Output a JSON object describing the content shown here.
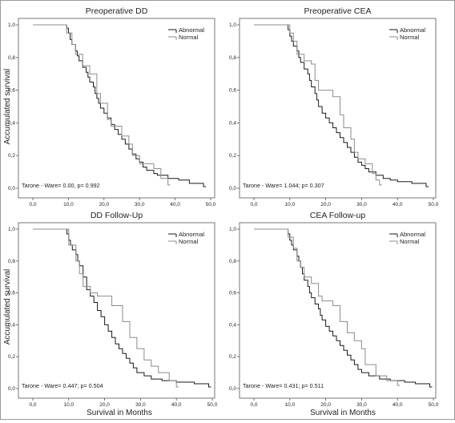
{
  "figure": {
    "y_axis_label": "Accumulated survival",
    "x_axis_label": "Survival in Months"
  },
  "chart_data": [
    {
      "type": "line",
      "subtype": "kaplan-meier step",
      "title": "Preoperative DD",
      "xlim": [
        0,
        50
      ],
      "ylim": [
        0,
        1
      ],
      "x_ticks": [
        "0,0",
        "10,0",
        "20,0",
        "30,0",
        "40,0",
        "50,0"
      ],
      "y_ticks": [
        "0,0",
        "0,2",
        "0,4",
        "0,6",
        "0,8",
        "1,0"
      ],
      "legend": [
        "Abnormal",
        "Normal"
      ],
      "legend_position": "top-right",
      "annotation": "Tarone - Ware= 0.00, p= 0.992",
      "series": [
        {
          "name": "Abnormal",
          "color": "#1a1a1a",
          "points": [
            [
              0,
              1.0
            ],
            [
              9.5,
              0.98
            ],
            [
              10,
              0.95
            ],
            [
              10.5,
              0.91
            ],
            [
              11,
              0.88
            ],
            [
              12,
              0.84
            ],
            [
              12.5,
              0.81
            ],
            [
              13,
              0.78
            ],
            [
              14,
              0.74
            ],
            [
              15,
              0.71
            ],
            [
              15.5,
              0.68
            ],
            [
              16,
              0.65
            ],
            [
              17,
              0.62
            ],
            [
              17.5,
              0.58
            ],
            [
              18,
              0.55
            ],
            [
              18.5,
              0.52
            ],
            [
              19,
              0.49
            ],
            [
              20,
              0.46
            ],
            [
              21,
              0.43
            ],
            [
              22,
              0.39
            ],
            [
              23,
              0.36
            ],
            [
              24,
              0.33
            ],
            [
              25,
              0.3
            ],
            [
              26,
              0.27
            ],
            [
              27,
              0.24
            ],
            [
              28,
              0.21
            ],
            [
              29,
              0.18
            ],
            [
              30,
              0.16
            ],
            [
              31,
              0.13
            ],
            [
              32,
              0.11
            ],
            [
              34,
              0.09
            ],
            [
              35,
              0.08
            ],
            [
              38,
              0.06
            ],
            [
              41,
              0.05
            ],
            [
              44,
              0.03
            ],
            [
              48,
              0.01
            ]
          ]
        },
        {
          "name": "Normal",
          "color": "#8c8c8c",
          "points": [
            [
              0,
              1.0
            ],
            [
              9.5,
              0.95
            ],
            [
              11,
              0.88
            ],
            [
              12,
              0.82
            ],
            [
              14,
              0.75
            ],
            [
              16,
              0.7
            ],
            [
              18,
              0.58
            ],
            [
              19,
              0.52
            ],
            [
              21,
              0.42
            ],
            [
              22,
              0.38
            ],
            [
              25,
              0.32
            ],
            [
              27,
              0.27
            ],
            [
              28,
              0.2
            ],
            [
              30,
              0.15
            ],
            [
              34,
              0.12
            ],
            [
              36,
              0.06
            ],
            [
              38,
              0.02
            ]
          ]
        }
      ]
    },
    {
      "type": "line",
      "subtype": "kaplan-meier step",
      "title": "Preoperative CEA",
      "xlim": [
        0,
        50
      ],
      "ylim": [
        0,
        1
      ],
      "x_ticks": [
        "0,0",
        "10,0",
        "20,0",
        "30,0",
        "40,0",
        "50,0"
      ],
      "y_ticks": [
        "0,0",
        "0,2",
        "0,4",
        "0,6",
        "0,8",
        "1,0"
      ],
      "legend": [
        "Abnormal",
        "Normal"
      ],
      "legend_position": "top-right",
      "annotation": "Tarone - Ware= 1.044; p= 0.307",
      "series": [
        {
          "name": "Abnormal",
          "color": "#1a1a1a",
          "points": [
            [
              0,
              1.0
            ],
            [
              9.5,
              0.97
            ],
            [
              10,
              0.93
            ],
            [
              10.5,
              0.9
            ],
            [
              11,
              0.87
            ],
            [
              12,
              0.84
            ],
            [
              12.5,
              0.8
            ],
            [
              13,
              0.77
            ],
            [
              14,
              0.73
            ],
            [
              15,
              0.7
            ],
            [
              15.5,
              0.66
            ],
            [
              16,
              0.62
            ],
            [
              17,
              0.58
            ],
            [
              17.5,
              0.54
            ],
            [
              18,
              0.5
            ],
            [
              19,
              0.46
            ],
            [
              20,
              0.43
            ],
            [
              21,
              0.4
            ],
            [
              22,
              0.37
            ],
            [
              23,
              0.34
            ],
            [
              24,
              0.31
            ],
            [
              25,
              0.28
            ],
            [
              26,
              0.25
            ],
            [
              27,
              0.22
            ],
            [
              28,
              0.19
            ],
            [
              29,
              0.16
            ],
            [
              30,
              0.14
            ],
            [
              31,
              0.12
            ],
            [
              32,
              0.1
            ],
            [
              34,
              0.08
            ],
            [
              36,
              0.06
            ],
            [
              38,
              0.05
            ],
            [
              40,
              0.04
            ],
            [
              44,
              0.03
            ],
            [
              48,
              0.01
            ]
          ]
        },
        {
          "name": "Normal",
          "color": "#8c8c8c",
          "points": [
            [
              0,
              1.0
            ],
            [
              10,
              0.95
            ],
            [
              11,
              0.9
            ],
            [
              12,
              0.82
            ],
            [
              14,
              0.78
            ],
            [
              16,
              0.76
            ],
            [
              17,
              0.66
            ],
            [
              18,
              0.6
            ],
            [
              22,
              0.56
            ],
            [
              24,
              0.45
            ],
            [
              25,
              0.37
            ],
            [
              27,
              0.3
            ],
            [
              28,
              0.22
            ],
            [
              29,
              0.18
            ],
            [
              31,
              0.15
            ],
            [
              33,
              0.09
            ],
            [
              34,
              0.05
            ],
            [
              35,
              0.02
            ]
          ]
        }
      ]
    },
    {
      "type": "line",
      "subtype": "kaplan-meier step",
      "title": "DD Follow-Up",
      "xlim": [
        0,
        50
      ],
      "ylim": [
        0,
        1
      ],
      "x_ticks": [
        "0,0",
        "10,0",
        "20,0",
        "30,0",
        "40,0",
        "50,0"
      ],
      "y_ticks": [
        "0,0",
        "0,2",
        "0,4",
        "0,6",
        "0,8",
        "1,0"
      ],
      "legend": [
        "Abnormal",
        "Normal"
      ],
      "legend_position": "top-right",
      "annotation": "Tarone - Ware= 0.447; p= 0.504",
      "series": [
        {
          "name": "Abnormal",
          "color": "#1a1a1a",
          "points": [
            [
              0,
              1.0
            ],
            [
              9.5,
              0.97
            ],
            [
              10,
              0.93
            ],
            [
              10.5,
              0.9
            ],
            [
              11,
              0.87
            ],
            [
              12,
              0.84
            ],
            [
              12.5,
              0.8
            ],
            [
              13,
              0.77
            ],
            [
              14,
              0.7
            ],
            [
              15,
              0.62
            ],
            [
              16,
              0.58
            ],
            [
              17,
              0.54
            ],
            [
              18,
              0.49
            ],
            [
              19,
              0.45
            ],
            [
              20,
              0.4
            ],
            [
              21,
              0.36
            ],
            [
              22,
              0.32
            ],
            [
              23,
              0.28
            ],
            [
              24,
              0.25
            ],
            [
              25,
              0.22
            ],
            [
              26,
              0.19
            ],
            [
              27,
              0.16
            ],
            [
              28,
              0.13
            ],
            [
              29,
              0.1
            ],
            [
              31,
              0.08
            ],
            [
              33,
              0.06
            ],
            [
              36,
              0.05
            ],
            [
              40,
              0.04
            ],
            [
              45,
              0.03
            ],
            [
              49,
              0.01
            ]
          ]
        },
        {
          "name": "Normal",
          "color": "#8c8c8c",
          "points": [
            [
              0,
              1.0
            ],
            [
              10,
              0.9
            ],
            [
              12,
              0.8
            ],
            [
              13,
              0.72
            ],
            [
              14,
              0.64
            ],
            [
              16,
              0.6
            ],
            [
              18,
              0.58
            ],
            [
              22,
              0.52
            ],
            [
              25,
              0.42
            ],
            [
              27,
              0.32
            ],
            [
              29,
              0.25
            ],
            [
              31,
              0.18
            ],
            [
              33,
              0.14
            ],
            [
              35,
              0.1
            ],
            [
              38,
              0.05
            ],
            [
              40,
              0.01
            ]
          ]
        }
      ]
    },
    {
      "type": "line",
      "subtype": "kaplan-meier step",
      "title": "CEA Follow-up",
      "xlim": [
        0,
        50
      ],
      "ylim": [
        0,
        1
      ],
      "x_ticks": [
        "0,0",
        "10,0",
        "20,0",
        "30,0",
        "40,0",
        "50,0"
      ],
      "y_ticks": [
        "0,0",
        "0,2",
        "0,4",
        "0,6",
        "0,8",
        "1,0"
      ],
      "legend": [
        "Abnormal",
        "Normal"
      ],
      "legend_position": "top-right",
      "annotation": "Tarone - Ware= 0.431; p= 0.511",
      "series": [
        {
          "name": "Abnormal",
          "color": "#1a1a1a",
          "points": [
            [
              0,
              1.0
            ],
            [
              9.5,
              0.97
            ],
            [
              10,
              0.93
            ],
            [
              10.5,
              0.9
            ],
            [
              11,
              0.87
            ],
            [
              12,
              0.83
            ],
            [
              12.5,
              0.8
            ],
            [
              13,
              0.76
            ],
            [
              13.5,
              0.72
            ],
            [
              14,
              0.68
            ],
            [
              15,
              0.64
            ],
            [
              15.5,
              0.6
            ],
            [
              16,
              0.57
            ],
            [
              17,
              0.53
            ],
            [
              18,
              0.5
            ],
            [
              18.5,
              0.46
            ],
            [
              19,
              0.43
            ],
            [
              20,
              0.39
            ],
            [
              21,
              0.36
            ],
            [
              22,
              0.33
            ],
            [
              23,
              0.3
            ],
            [
              24,
              0.27
            ],
            [
              25,
              0.24
            ],
            [
              26,
              0.21
            ],
            [
              27,
              0.18
            ],
            [
              28,
              0.15
            ],
            [
              29,
              0.12
            ],
            [
              30,
              0.1
            ],
            [
              32,
              0.08
            ],
            [
              35,
              0.06
            ],
            [
              38,
              0.05
            ],
            [
              42,
              0.04
            ],
            [
              45,
              0.03
            ],
            [
              49,
              0.01
            ]
          ]
        },
        {
          "name": "Normal",
          "color": "#8c8c8c",
          "points": [
            [
              0,
              1.0
            ],
            [
              9.5,
              0.95
            ],
            [
              11,
              0.88
            ],
            [
              12,
              0.8
            ],
            [
              13,
              0.76
            ],
            [
              14,
              0.7
            ],
            [
              16,
              0.66
            ],
            [
              18,
              0.58
            ],
            [
              19,
              0.55
            ],
            [
              22,
              0.52
            ],
            [
              24,
              0.42
            ],
            [
              26,
              0.35
            ],
            [
              28,
              0.3
            ],
            [
              30,
              0.25
            ],
            [
              31,
              0.15
            ],
            [
              34,
              0.08
            ],
            [
              37,
              0.05
            ],
            [
              40,
              0.02
            ]
          ]
        }
      ]
    }
  ]
}
